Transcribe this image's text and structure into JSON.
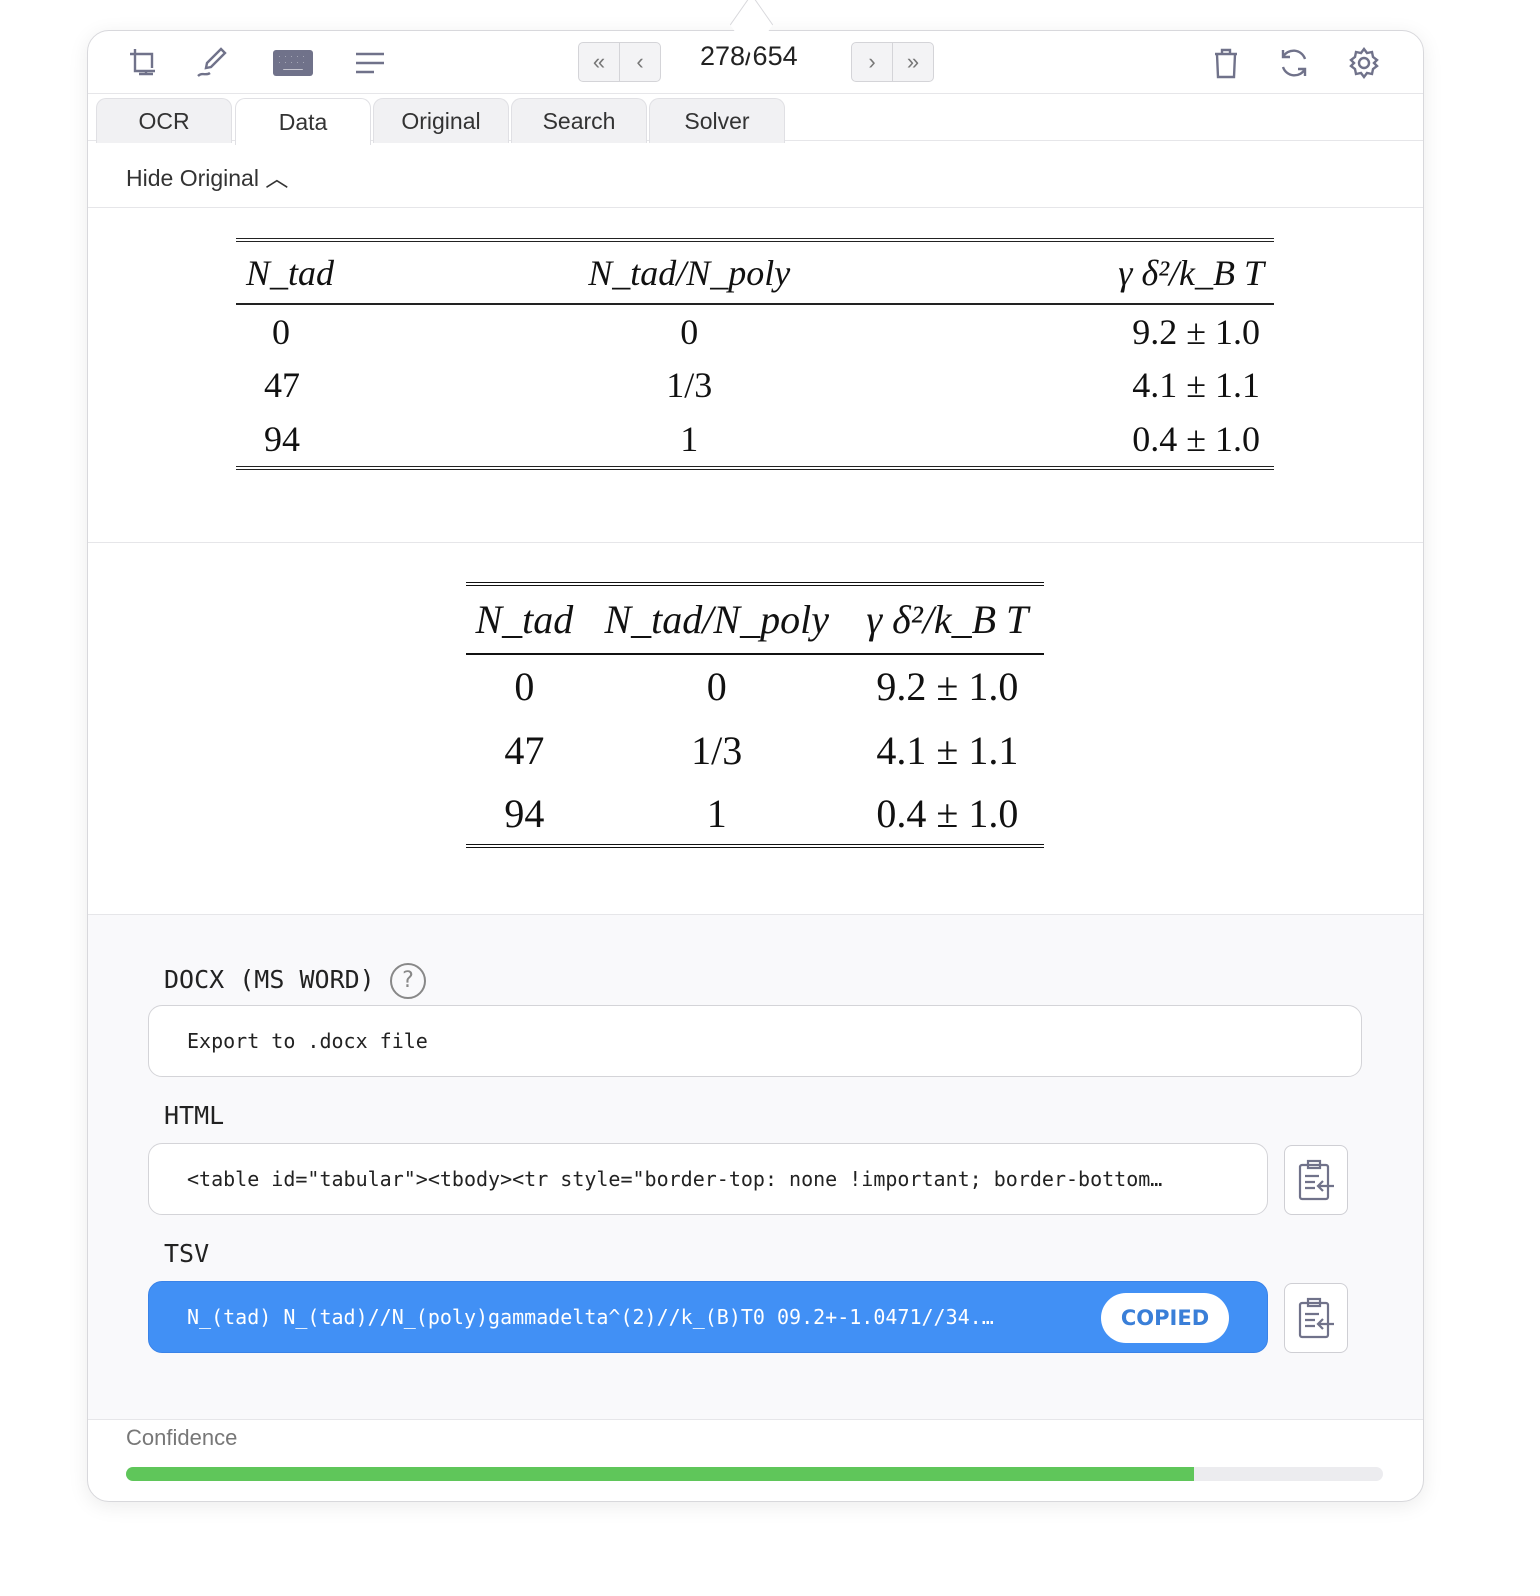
{
  "toolbar": {
    "page": "278/654",
    "icons": [
      "screenshot-icon",
      "pen-icon",
      "keyboard-icon",
      "text-lines-icon",
      "trash-icon",
      "refresh-icon",
      "gear-icon"
    ],
    "nav": {
      "first": "«",
      "prev": "‹",
      "next": "›",
      "last": "»"
    }
  },
  "tabs": [
    {
      "label": "OCR"
    },
    {
      "label": "Data",
      "active": true
    },
    {
      "label": "Original"
    },
    {
      "label": "Search"
    },
    {
      "label": "Solver"
    }
  ],
  "hide_original": "Hide Original",
  "table": {
    "headers": [
      "N_tad",
      "N_tad/N_poly",
      "γ δ²/k_B T"
    ],
    "rows": [
      [
        "0",
        "0",
        "9.2 ± 1.0"
      ],
      [
        "47",
        "1/3",
        "4.1 ± 1.1"
      ],
      [
        "94",
        "1",
        "0.4 ± 1.0"
      ]
    ]
  },
  "exports": {
    "docx": {
      "label": "DOCX (MS WORD)",
      "value": "Export to .docx file"
    },
    "html": {
      "label": "HTML",
      "value": "<table id=\"tabular\"><tbody><tr style=\"border-top: none !important; border-bottom…"
    },
    "tsv": {
      "label": "TSV",
      "value": "N_(tad)  N_(tad)//N_(poly)gammadelta^(2)//k_(B)T0   09.2+-1.0471//34.…",
      "badge": "COPIED"
    }
  },
  "confidence": {
    "label": "Confidence",
    "value": 0.85,
    "color": "#5fc65a"
  },
  "colors": {
    "accent": "#4190f5"
  }
}
